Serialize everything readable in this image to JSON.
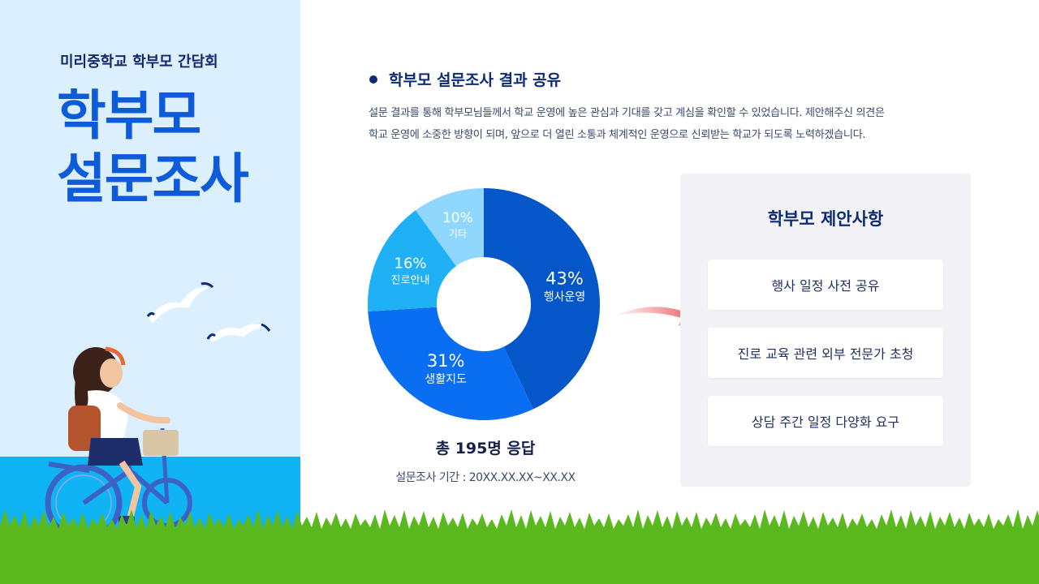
{
  "header": {
    "subtitle": "미리중학교 학부모 간담회",
    "title_line1": "학부모",
    "title_line2": "설문조사"
  },
  "section": {
    "title": "학부모 설문조사 결과 공유",
    "desc_line1": "설문 결과를 통해 학부모님들께서 학교 운영에 높은 관심과 기대를 갖고 계심을 확인할 수 있었습니다. 제안해주신 의견은",
    "desc_line2": "학교 운영에 소중한 방향이 되며, 앞으로 더 열린 소통과 체계적인 운영으로 신뢰받는 학교가 되도록 노력하겠습니다."
  },
  "chart_data": {
    "type": "pie",
    "title": "",
    "slices": [
      {
        "label": "행사운영",
        "value": 43,
        "display": "43%",
        "color": "#0556c8"
      },
      {
        "label": "생활지도",
        "value": 31,
        "display": "31%",
        "color": "#0a6ef2"
      },
      {
        "label": "진로안내",
        "value": 16,
        "display": "16%",
        "color": "#1fb0f6"
      },
      {
        "label": "기타",
        "value": 10,
        "display": "10%",
        "color": "#8fd7fd"
      }
    ]
  },
  "summary": {
    "total": "총 195명 응답",
    "period": "설문조사 기간 : 20XX.XX.XX~XX.XX"
  },
  "proposals": {
    "title": "학부모 제안사항",
    "items": [
      "행사 일정 사전 공유",
      "진로 교육 관련 외부 전문가 초청",
      "상담 주간 일정 다양화 요구"
    ]
  },
  "colors": {
    "accent": "#0d5bd8",
    "navy": "#0d2b73",
    "sky": "#dcefff",
    "sea": "#10b4f5",
    "grass": "#5bb81f",
    "arrow": "#e8504f"
  }
}
